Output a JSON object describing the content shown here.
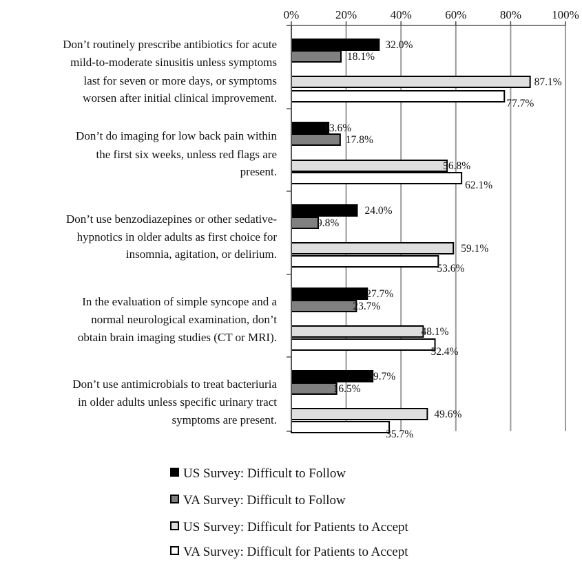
{
  "chart_data": {
    "type": "bar",
    "orientation": "horizontal",
    "xlim": [
      0,
      100
    ],
    "xticks": [
      "0%",
      "20%",
      "40%",
      "60%",
      "80%",
      "100%"
    ],
    "xtick_values": [
      0,
      20,
      40,
      60,
      80,
      100
    ],
    "grid": true,
    "legend_position": "bottom",
    "categories": [
      [
        "Don’t routinely prescribe antibiotics for acute",
        "mild-to-moderate sinusitis unless symptoms",
        "last for seven or more days, or symptoms",
        "worsen after initial clinical improvement."
      ],
      [
        "Don’t do imaging for low back pain within",
        "the first six weeks, unless red flags are",
        "present."
      ],
      [
        "Don’t use benzodiazepines or other sedative-",
        "hypnotics in older adults as first choice for",
        "insomnia, agitation, or delirium."
      ],
      [
        "In the evaluation of simple syncope and a",
        "normal neurological examination, don’t",
        "obtain brain imaging studies (CT or MRI)."
      ],
      [
        "Don’t use antimicrobials to treat bacteriuria",
        "in older adults unless specific urinary tract",
        "symptoms are present."
      ]
    ],
    "series": [
      {
        "name": "US Survey: Difficult to Follow",
        "color": "#000000",
        "values": [
          32.0,
          13.6,
          24.0,
          27.7,
          29.7
        ],
        "labels": [
          "32.0%",
          "13.6%",
          "24.0%",
          "27.7%",
          "29.7%"
        ]
      },
      {
        "name": "VA Survey: Difficult to Follow",
        "color": "#808080",
        "values": [
          18.1,
          17.8,
          9.8,
          23.7,
          16.5
        ],
        "labels": [
          "18.1%",
          "17.8%",
          "9.8%",
          "23.7%",
          "16.5%"
        ]
      },
      {
        "name": "US Survey: Difficult for Patients to Accept",
        "color": "#dedede",
        "values": [
          87.1,
          56.8,
          59.1,
          48.1,
          49.6
        ],
        "labels": [
          "87.1%",
          "56.8%",
          "59.1%",
          "48.1%",
          "49.6%"
        ]
      },
      {
        "name": "VA Survey: Difficult for Patients to Accept",
        "color": "#ffffff",
        "values": [
          77.7,
          62.1,
          53.6,
          52.4,
          35.7
        ],
        "labels": [
          "77.7%",
          "62.1%",
          "53.6%",
          "52.4%",
          "35.7%"
        ]
      }
    ]
  }
}
